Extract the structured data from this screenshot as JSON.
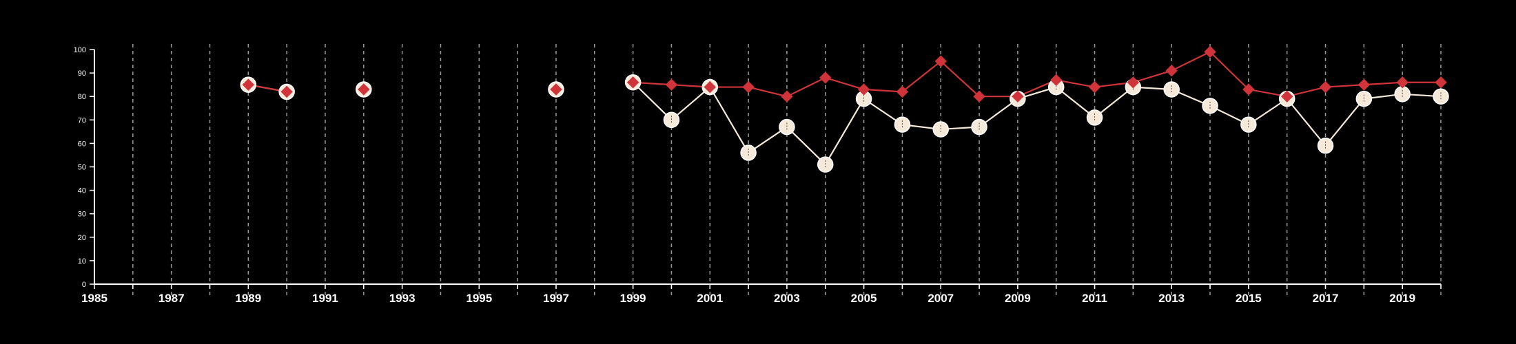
{
  "chart_data": {
    "type": "line",
    "title": "",
    "xlabel": "",
    "ylabel": "",
    "xlim": [
      1985,
      2020
    ],
    "ylim": [
      0,
      100
    ],
    "x_ticks": [
      "1985",
      "1987",
      "1989",
      "1991",
      "1993",
      "1995",
      "1997",
      "1999",
      "2001",
      "2003",
      "2005",
      "2007",
      "2009",
      "2011",
      "2013",
      "2015",
      "2017",
      "2019"
    ],
    "y_ticks": [
      "0",
      "10",
      "20",
      "30",
      "40",
      "50",
      "60",
      "70",
      "80",
      "90",
      "100"
    ],
    "grid": "vertical dashed lines every year",
    "legend": "none",
    "colors": {
      "background": "#000000",
      "axis": "#ffffff",
      "grid": "#9a9a9a",
      "series_red": "#d0343a",
      "series_cream": "#f5e9da"
    },
    "series": [
      {
        "marker": "circle",
        "x": [
          1989,
          1990,
          1992,
          1997,
          1999,
          2000,
          2001,
          2002,
          2003,
          2004,
          2005,
          2006,
          2007,
          2008,
          2009,
          2010,
          2011,
          2012,
          2013,
          2014,
          2015,
          2016,
          2017,
          2018,
          2019,
          2020
        ],
        "values": [
          85,
          82,
          83,
          83,
          86,
          70,
          84,
          56,
          67,
          51,
          79,
          68,
          66,
          67,
          79,
          84,
          71,
          84,
          83,
          76,
          68,
          79,
          59,
          79,
          81,
          80
        ]
      },
      {
        "marker": "diamond",
        "x": [
          1989,
          1990,
          1992,
          1997,
          1999,
          2000,
          2001,
          2002,
          2003,
          2004,
          2005,
          2006,
          2007,
          2008,
          2009,
          2010,
          2011,
          2012,
          2013,
          2014,
          2015,
          2016,
          2017,
          2018,
          2019,
          2020
        ],
        "values": [
          85,
          82,
          83,
          83,
          86,
          85,
          84,
          84,
          80,
          88,
          83,
          82,
          95,
          80,
          80,
          87,
          84,
          86,
          91,
          99,
          83,
          80,
          84,
          85,
          86,
          86
        ]
      }
    ]
  }
}
